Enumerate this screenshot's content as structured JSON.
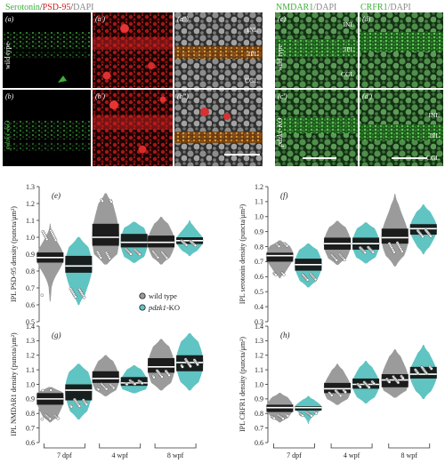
{
  "micrographs": {
    "header_left": {
      "serotonin": "Serotonin",
      "sep1": "/",
      "psd": "PSD-95",
      "sep2": "/",
      "dapi": "DAPI"
    },
    "header_right": {
      "nmdar": "NMDAR1",
      "dapi1": "/DAPI",
      "crfr": "CRFR1",
      "dapi2": "/DAPI"
    },
    "panels": [
      {
        "label": "(a)",
        "group": "wild type"
      },
      {
        "label": "(a')"
      },
      {
        "label": "(a'')",
        "layers": [
          "INL",
          "IPL",
          "CGL"
        ]
      },
      {
        "label": "(c)",
        "group": "wild type",
        "layers": [
          "INL",
          "IPL",
          "CGL"
        ]
      },
      {
        "label": "(d)"
      },
      {
        "label": "(b)",
        "group": "pdzk1-KO"
      },
      {
        "label": "(b')"
      },
      {
        "label": "(b'')"
      },
      {
        "label": "(c')",
        "group": "pdzk1-KO"
      },
      {
        "label": "(d')",
        "layers": [
          "INL",
          "IPL",
          "CGL"
        ]
      }
    ]
  },
  "legend": {
    "items": [
      {
        "label": "wild type",
        "color": "#9b9b9b"
      },
      {
        "label": "pdzk1",
        "suffix": "-KO",
        "color": "#5fc4c2"
      }
    ]
  },
  "colors": {
    "wild_type": "#9b9b9b",
    "knockout": "#5fc4c2",
    "band": "#111111",
    "serotonin": "#3fae3a",
    "psd95": "#d01a1a",
    "dapi": "#9a9a9a"
  },
  "x_groups": [
    "7 dpf",
    "4 wpf",
    "8 wpf"
  ],
  "chart_data": [
    {
      "type": "violin",
      "panel": "(e)",
      "ylabel": "IPL PSD-95 density (puncta/μm²)",
      "ylim": [
        0.5,
        1.3
      ],
      "yticks": [
        0.5,
        0.6,
        0.7,
        0.8,
        0.9,
        1.0,
        1.1,
        1.2,
        1.3
      ],
      "ytick_labels": [
        "0.5",
        "0.6",
        "0.7",
        "0.8",
        "0.9",
        "1.0",
        "1.1",
        "1.2",
        "1.3"
      ],
      "categories": [
        "7 dpf",
        "4 wpf",
        "8 wpf"
      ],
      "series": [
        {
          "name": "wild type",
          "median": [
            0.88,
            1.0,
            0.97
          ],
          "q1": [
            0.85,
            0.95,
            0.94
          ],
          "q3": [
            0.91,
            1.08,
            1.01
          ],
          "min": [
            0.62,
            0.84,
            0.84
          ],
          "max": [
            1.08,
            1.26,
            1.12
          ]
        },
        {
          "name": "pdzk1-KO",
          "median": [
            0.83,
            0.97,
            0.98
          ],
          "q1": [
            0.79,
            0.94,
            0.96
          ],
          "q3": [
            0.89,
            1.02,
            1.0
          ],
          "min": [
            0.6,
            0.85,
            0.89
          ],
          "max": [
            1.0,
            1.09,
            1.1
          ]
        }
      ]
    },
    {
      "type": "violin",
      "panel": "(f)",
      "ylabel": "IPL serotonin density (puncta/μm²)",
      "ylim": [
        0.3,
        1.2
      ],
      "yticks": [
        0.3,
        0.4,
        0.5,
        0.6,
        0.7,
        0.8,
        0.9,
        1.0,
        1.1,
        1.2
      ],
      "ytick_labels": [
        "0.3",
        "0.4",
        "0.5",
        "0.6",
        "0.7",
        "0.8",
        "0.9",
        "1.0",
        "1.1",
        "1.2"
      ],
      "categories": [
        "7 dpf",
        "4 wpf",
        "8 wpf"
      ],
      "series": [
        {
          "name": "wild type",
          "median": [
            0.74,
            0.82,
            0.86
          ],
          "q1": [
            0.7,
            0.78,
            0.82
          ],
          "q3": [
            0.76,
            0.86,
            0.92
          ],
          "min": [
            0.59,
            0.68,
            0.67
          ],
          "max": [
            0.84,
            0.97,
            1.15
          ]
        },
        {
          "name": "pdzk1-KO",
          "median": [
            0.68,
            0.82,
            0.92
          ],
          "q1": [
            0.64,
            0.78,
            0.88
          ],
          "q3": [
            0.72,
            0.86,
            0.95
          ],
          "min": [
            0.53,
            0.69,
            0.75
          ],
          "max": [
            0.82,
            0.96,
            1.08
          ]
        }
      ]
    },
    {
      "type": "violin",
      "panel": "(g)",
      "ylabel": "IPL NMDAR1 density (puncta/μm²)",
      "ylim": [
        0.6,
        1.4
      ],
      "yticks": [
        0.6,
        0.7,
        0.8,
        0.9,
        1.0,
        1.1,
        1.2,
        1.3,
        1.4
      ],
      "ytick_labels": [
        "0.6",
        "0.7",
        "0.8",
        "0.9",
        "1.0",
        "1.1",
        "1.2",
        "1.3",
        "1.4"
      ],
      "categories": [
        "7 dpf",
        "4 wpf",
        "8 wpf"
      ],
      "series": [
        {
          "name": "wild type",
          "median": [
            0.9,
            1.04,
            1.12
          ],
          "q1": [
            0.86,
            1.01,
            1.08
          ],
          "q3": [
            0.94,
            1.09,
            1.18
          ],
          "min": [
            0.74,
            0.92,
            0.96
          ],
          "max": [
            0.98,
            1.2,
            1.31
          ]
        },
        {
          "name": "pdzk1-KO",
          "median": [
            0.96,
            1.01,
            1.15
          ],
          "q1": [
            0.89,
            0.99,
            1.09
          ],
          "q3": [
            1.0,
            1.05,
            1.2
          ],
          "min": [
            0.76,
            0.94,
            0.96
          ],
          "max": [
            1.14,
            1.13,
            1.35
          ]
        }
      ]
    },
    {
      "type": "violin",
      "panel": "(h)",
      "ylabel": "IPL CRFR1 density (puncta/μm²)",
      "ylim": [
        0.6,
        1.4
      ],
      "yticks": [
        0.6,
        0.7,
        0.8,
        0.9,
        1.0,
        1.1,
        1.2,
        1.3,
        1.4
      ],
      "ytick_labels": [
        "0.6",
        "0.7",
        "0.8",
        "0.9",
        "1.0",
        "1.1",
        "1.2",
        "1.3",
        "1.4"
      ],
      "categories": [
        "7 dpf",
        "4 wpf",
        "8 wpf"
      ],
      "series": [
        {
          "name": "wild type",
          "median": [
            0.84,
            0.97,
            1.03
          ],
          "q1": [
            0.81,
            0.94,
            0.98
          ],
          "q3": [
            0.86,
            1.01,
            1.07
          ],
          "min": [
            0.74,
            0.86,
            0.91
          ],
          "max": [
            0.94,
            1.14,
            1.24
          ]
        },
        {
          "name": "pdzk1-KO",
          "median": [
            0.84,
            1.0,
            1.07
          ],
          "q1": [
            0.82,
            0.97,
            1.04
          ],
          "q3": [
            0.85,
            1.04,
            1.12
          ],
          "min": [
            0.73,
            0.87,
            0.9
          ],
          "max": [
            0.92,
            1.16,
            1.27
          ]
        }
      ]
    }
  ]
}
